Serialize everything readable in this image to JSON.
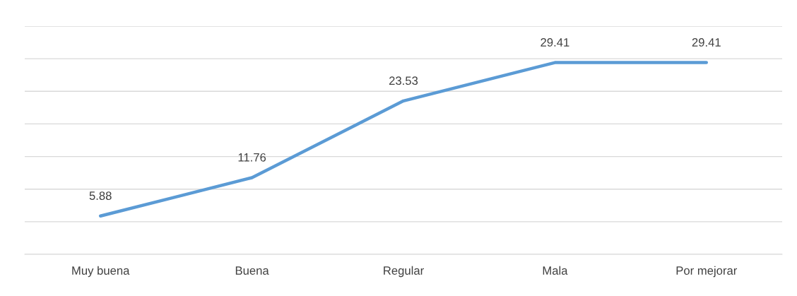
{
  "chart_data": {
    "type": "line",
    "categories": [
      "Muy buena",
      "Buena",
      "Regular",
      "Mala",
      "Por mejorar"
    ],
    "series": [
      {
        "color": "#5b9bd5",
        "values": [
          5.88,
          11.76,
          23.53,
          29.41,
          29.41
        ]
      }
    ],
    "data_labels": true,
    "ylim": [
      0,
      35
    ],
    "yticks": [
      {
        "value": 0,
        "label": null
      },
      {
        "value": 5,
        "label": null
      },
      {
        "value": 10,
        "label": null
      },
      {
        "value": 15,
        "label": null
      },
      {
        "value": 20,
        "label": null
      },
      {
        "value": 25,
        "label": null
      },
      {
        "value": 30,
        "label": null
      },
      {
        "value": 35,
        "label": null
      }
    ],
    "grid": "y",
    "tick_labels": "x",
    "marker": "none",
    "line_style": "solid"
  }
}
